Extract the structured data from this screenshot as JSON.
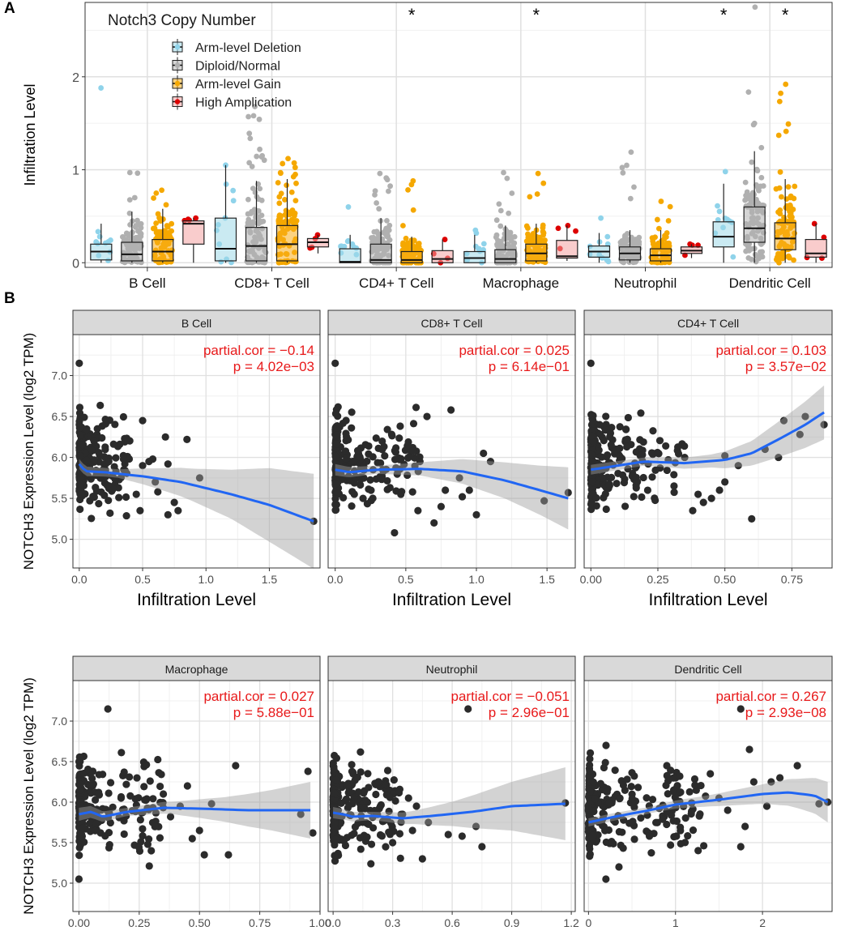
{
  "panel_a": {
    "label": "A",
    "title": "Notch3 Copy Number",
    "ylabel": "Infiltration Level",
    "y_ticks": [
      "0",
      "1",
      "2"
    ],
    "legend": [
      {
        "label": "Arm-level Deletion",
        "color": "#9fd8e8"
      },
      {
        "label": "Diploid/Normal",
        "color": "#b3b3b3"
      },
      {
        "label": "Arm-level Gain",
        "color": "#f7ad19"
      },
      {
        "label": "High Amplication",
        "color": "#f4a3a3"
      }
    ],
    "significance_marker": "*"
  },
  "panel_b": {
    "label": "B",
    "ylabel": "NOTCH3 Expression Level (log2 TPM)",
    "xlabel": "Infiltration Level",
    "y_ticks": [
      "5.0",
      "5.5",
      "6.0",
      "6.5",
      "7.0"
    ]
  },
  "chart_data": [
    {
      "type": "box",
      "title": "Notch3 Copy Number",
      "ylabel": "Infiltration Level",
      "ylim": [
        -0.05,
        2.8
      ],
      "categories": [
        "B Cell",
        "CD8+ T Cell",
        "CD4+ T Cell",
        "Macrophage",
        "Neutrophil",
        "Dendritic Cell"
      ],
      "groups": [
        "Arm-level Deletion",
        "Diploid/Normal",
        "Arm-level Gain",
        "High Amplication"
      ],
      "significant": [
        {
          "category": "CD4+ T Cell",
          "group": "Arm-level Gain"
        },
        {
          "category": "Macrophage",
          "group": "Arm-level Gain"
        },
        {
          "category": "Dendritic Cell",
          "group": "Arm-level Deletion"
        },
        {
          "category": "Dendritic Cell",
          "group": "Arm-level Gain"
        }
      ],
      "boxes": [
        [
          {
            "q1": 0.03,
            "med": 0.12,
            "q3": 0.2,
            "lo": 0.0,
            "hi": 0.42,
            "max": 1.88
          },
          {
            "q1": 0.02,
            "med": 0.09,
            "q3": 0.22,
            "lo": 0.0,
            "hi": 0.55,
            "max": 0.97
          },
          {
            "q1": 0.02,
            "med": 0.12,
            "q3": 0.25,
            "lo": 0.0,
            "hi": 0.58,
            "max": 0.78
          },
          {
            "q1": 0.2,
            "med": 0.42,
            "q3": 0.45,
            "lo": 0.0,
            "hi": 0.48,
            "max": 0.48
          }
        ],
        [
          {
            "q1": 0.02,
            "med": 0.15,
            "q3": 0.48,
            "lo": 0.0,
            "hi": 1.05,
            "max": 1.05
          },
          {
            "q1": 0.02,
            "med": 0.18,
            "q3": 0.38,
            "lo": 0.0,
            "hi": 0.88,
            "max": 1.68
          },
          {
            "q1": 0.02,
            "med": 0.2,
            "q3": 0.4,
            "lo": 0.0,
            "hi": 0.9,
            "max": 1.12
          },
          {
            "q1": 0.17,
            "med": 0.22,
            "q3": 0.26,
            "lo": 0.1,
            "hi": 0.3,
            "max": 0.3
          }
        ],
        [
          {
            "q1": 0.0,
            "med": 0.01,
            "q3": 0.15,
            "lo": 0.0,
            "hi": 0.3,
            "max": 0.6
          },
          {
            "q1": 0.0,
            "med": 0.03,
            "q3": 0.2,
            "lo": 0.0,
            "hi": 0.48,
            "max": 0.96
          },
          {
            "q1": 0.0,
            "med": 0.03,
            "q3": 0.12,
            "lo": 0.0,
            "hi": 0.28,
            "max": 0.88
          },
          {
            "q1": 0.0,
            "med": 0.04,
            "q3": 0.13,
            "lo": 0.0,
            "hi": 0.25,
            "max": 0.25
          }
        ],
        [
          {
            "q1": 0.0,
            "med": 0.05,
            "q3": 0.12,
            "lo": 0.0,
            "hi": 0.3,
            "max": 0.35
          },
          {
            "q1": 0.0,
            "med": 0.04,
            "q3": 0.14,
            "lo": 0.0,
            "hi": 0.4,
            "max": 0.97
          },
          {
            "q1": 0.02,
            "med": 0.1,
            "q3": 0.2,
            "lo": 0.0,
            "hi": 0.42,
            "max": 0.96
          },
          {
            "q1": 0.05,
            "med": 0.07,
            "q3": 0.24,
            "lo": 0.02,
            "hi": 0.4,
            "max": 0.4
          }
        ],
        [
          {
            "q1": 0.06,
            "med": 0.12,
            "q3": 0.18,
            "lo": 0.0,
            "hi": 0.32,
            "max": 0.48
          },
          {
            "q1": 0.03,
            "med": 0.1,
            "q3": 0.17,
            "lo": 0.0,
            "hi": 0.35,
            "max": 1.19
          },
          {
            "q1": 0.02,
            "med": 0.08,
            "q3": 0.15,
            "lo": 0.0,
            "hi": 0.35,
            "max": 0.66
          },
          {
            "q1": 0.1,
            "med": 0.13,
            "q3": 0.17,
            "lo": 0.05,
            "hi": 0.2,
            "max": 0.2
          }
        ],
        [
          {
            "q1": 0.17,
            "med": 0.28,
            "q3": 0.44,
            "lo": 0.0,
            "hi": 0.85,
            "max": 0.98
          },
          {
            "q1": 0.22,
            "med": 0.37,
            "q3": 0.6,
            "lo": 0.0,
            "hi": 1.2,
            "max": 2.75
          },
          {
            "q1": 0.14,
            "med": 0.26,
            "q3": 0.43,
            "lo": 0.0,
            "hi": 0.9,
            "max": 1.92
          },
          {
            "q1": 0.06,
            "med": 0.1,
            "q3": 0.25,
            "lo": 0.0,
            "hi": 0.42,
            "max": 0.42
          }
        ]
      ]
    },
    {
      "type": "scatter",
      "title": "B Cell",
      "xlabel": "Infiltration Level",
      "ylabel": "NOTCH3 Expression Level (log2 TPM)",
      "xlim": [
        -0.05,
        1.9
      ],
      "ylim": [
        4.65,
        7.5
      ],
      "x_ticks": [
        0.0,
        0.5,
        1.0,
        1.5
      ],
      "x_tick_labels": [
        "0.0",
        "0.5",
        "1.0",
        "1.5"
      ],
      "annotation": [
        "partial.cor = −0.14",
        "p = 4.02e−03"
      ],
      "fit": [
        [
          0.0,
          5.92
        ],
        [
          0.05,
          5.83
        ],
        [
          0.2,
          5.82
        ],
        [
          0.5,
          5.77
        ],
        [
          0.8,
          5.7
        ],
        [
          1.2,
          5.55
        ],
        [
          1.5,
          5.42
        ],
        [
          1.85,
          5.22
        ]
      ],
      "band": [
        [
          0.0,
          0.06
        ],
        [
          0.3,
          0.05
        ],
        [
          0.6,
          0.12
        ],
        [
          0.9,
          0.2
        ],
        [
          1.2,
          0.3
        ],
        [
          1.5,
          0.45
        ],
        [
          1.85,
          0.58
        ]
      ],
      "points": [
        [
          0.0,
          7.15
        ],
        [
          1.85,
          5.22
        ],
        [
          0.85,
          6.22
        ],
        [
          0.95,
          5.75
        ],
        [
          0.7,
          5.92
        ],
        [
          0.7,
          5.3
        ],
        [
          0.75,
          5.45
        ],
        [
          0.62,
          5.58
        ],
        [
          0.6,
          5.7
        ],
        [
          0.55,
          5.95
        ],
        [
          0.48,
          5.35
        ],
        [
          0.5,
          5.9
        ],
        [
          0.68,
          6.25
        ],
        [
          0.5,
          6.45
        ],
        [
          0.45,
          5.55
        ],
        [
          0.58,
          5.98
        ],
        [
          0.78,
          5.35
        ]
      ],
      "cloud": {
        "x": [
          0.0,
          0.4
        ],
        "y": [
          5.2,
          6.7
        ],
        "n": 230
      }
    },
    {
      "type": "scatter",
      "title": "CD8+ T Cell",
      "xlabel": "Infiltration Level",
      "ylabel": "NOTCH3 Expression Level (log2 TPM)",
      "xlim": [
        -0.05,
        1.7
      ],
      "ylim": [
        4.65,
        7.5
      ],
      "x_ticks": [
        0.0,
        0.5,
        1.0,
        1.5
      ],
      "x_tick_labels": [
        "0.0",
        "0.5",
        "1.0",
        "1.5"
      ],
      "annotation": [
        "partial.cor = 0.025",
        "p = 6.14e−01"
      ],
      "fit": [
        [
          0.0,
          5.85
        ],
        [
          0.1,
          5.82
        ],
        [
          0.3,
          5.85
        ],
        [
          0.6,
          5.86
        ],
        [
          0.9,
          5.83
        ],
        [
          1.2,
          5.72
        ],
        [
          1.45,
          5.6
        ],
        [
          1.65,
          5.5
        ]
      ],
      "band": [
        [
          0.0,
          0.07
        ],
        [
          0.3,
          0.05
        ],
        [
          0.6,
          0.08
        ],
        [
          0.9,
          0.15
        ],
        [
          1.2,
          0.22
        ],
        [
          1.45,
          0.3
        ],
        [
          1.65,
          0.38
        ]
      ],
      "points": [
        [
          0.0,
          7.15
        ],
        [
          1.65,
          5.57
        ],
        [
          1.48,
          5.47
        ],
        [
          1.05,
          6.05
        ],
        [
          1.1,
          5.95
        ],
        [
          0.88,
          5.75
        ],
        [
          0.9,
          5.52
        ],
        [
          0.75,
          5.4
        ],
        [
          0.78,
          5.6
        ],
        [
          0.6,
          5.95
        ],
        [
          0.55,
          6.08
        ],
        [
          0.95,
          5.6
        ],
        [
          0.82,
          6.58
        ],
        [
          0.65,
          6.5
        ],
        [
          0.7,
          5.2
        ],
        [
          1.0,
          5.3
        ],
        [
          0.42,
          5.08
        ]
      ],
      "cloud": {
        "x": [
          0.0,
          0.6
        ],
        "y": [
          5.2,
          6.7
        ],
        "n": 230
      }
    },
    {
      "type": "scatter",
      "title": "CD4+ T Cell",
      "xlabel": "Infiltration Level",
      "ylabel": "NOTCH3 Expression Level (log2 TPM)",
      "xlim": [
        -0.025,
        0.9
      ],
      "ylim": [
        4.65,
        7.5
      ],
      "x_ticks": [
        0.0,
        0.25,
        0.5,
        0.75
      ],
      "x_tick_labels": [
        "0.00",
        "0.25",
        "0.50",
        "0.75"
      ],
      "annotation": [
        "partial.cor = 0.103",
        "p = 3.57e−02"
      ],
      "fit": [
        [
          0.0,
          5.85
        ],
        [
          0.1,
          5.9
        ],
        [
          0.2,
          5.95
        ],
        [
          0.35,
          5.93
        ],
        [
          0.5,
          5.97
        ],
        [
          0.6,
          6.05
        ],
        [
          0.7,
          6.22
        ],
        [
          0.8,
          6.4
        ],
        [
          0.87,
          6.55
        ]
      ],
      "band": [
        [
          0.0,
          0.06
        ],
        [
          0.2,
          0.05
        ],
        [
          0.45,
          0.08
        ],
        [
          0.6,
          0.15
        ],
        [
          0.75,
          0.25
        ],
        [
          0.87,
          0.33
        ]
      ],
      "points": [
        [
          0.0,
          7.15
        ],
        [
          0.87,
          6.4
        ],
        [
          0.8,
          6.5
        ],
        [
          0.78,
          6.28
        ],
        [
          0.7,
          6.0
        ],
        [
          0.72,
          6.45
        ],
        [
          0.6,
          5.25
        ],
        [
          0.65,
          6.1
        ],
        [
          0.55,
          5.9
        ],
        [
          0.5,
          5.7
        ],
        [
          0.48,
          5.6
        ],
        [
          0.45,
          5.5
        ],
        [
          0.4,
          5.55
        ],
        [
          0.42,
          5.45
        ],
        [
          0.35,
          6.0
        ],
        [
          0.5,
          6.02
        ],
        [
          0.38,
          5.35
        ]
      ],
      "cloud": {
        "x": [
          0.0,
          0.35
        ],
        "y": [
          5.1,
          6.7
        ],
        "n": 230
      }
    },
    {
      "type": "scatter",
      "title": "Macrophage",
      "xlabel": "Infiltration Level",
      "ylabel": "NOTCH3 Expression Level (log2 TPM)",
      "xlim": [
        -0.025,
        1.0
      ],
      "ylim": [
        4.65,
        7.5
      ],
      "x_ticks": [
        0.0,
        0.25,
        0.5,
        0.75,
        1.0
      ],
      "x_tick_labels": [
        "0.00",
        "0.25",
        "0.50",
        "0.75",
        "1.00"
      ],
      "annotation": [
        "partial.cor = 0.027",
        "p = 5.88e−01"
      ],
      "fit": [
        [
          0.0,
          5.85
        ],
        [
          0.05,
          5.88
        ],
        [
          0.1,
          5.82
        ],
        [
          0.2,
          5.88
        ],
        [
          0.35,
          5.93
        ],
        [
          0.5,
          5.92
        ],
        [
          0.7,
          5.9
        ],
        [
          0.96,
          5.9
        ]
      ],
      "band": [
        [
          0.0,
          0.08
        ],
        [
          0.2,
          0.05
        ],
        [
          0.4,
          0.08
        ],
        [
          0.6,
          0.15
        ],
        [
          0.8,
          0.25
        ],
        [
          0.96,
          0.35
        ]
      ],
      "points": [
        [
          0.12,
          7.15
        ],
        [
          0.95,
          6.38
        ],
        [
          0.97,
          5.62
        ],
        [
          0.92,
          5.85
        ],
        [
          0.65,
          6.45
        ],
        [
          0.55,
          5.98
        ],
        [
          0.62,
          5.35
        ],
        [
          0.5,
          5.65
        ],
        [
          0.52,
          5.35
        ],
        [
          0.42,
          5.95
        ],
        [
          0.47,
          5.55
        ],
        [
          0.38,
          5.82
        ],
        [
          0.35,
          6.1
        ],
        [
          0.45,
          6.2
        ],
        [
          0.3,
          5.4
        ],
        [
          0.0,
          5.05
        ]
      ],
      "cloud": {
        "x": [
          0.0,
          0.35
        ],
        "y": [
          5.2,
          6.7
        ],
        "n": 230
      }
    },
    {
      "type": "scatter",
      "title": "Neutrophil",
      "xlabel": "Infiltration Level",
      "ylabel": "NOTCH3 Expression Level (log2 TPM)",
      "xlim": [
        -0.025,
        1.22
      ],
      "ylim": [
        4.65,
        7.5
      ],
      "x_ticks": [
        0.0,
        0.3,
        0.6,
        0.9,
        1.2
      ],
      "x_tick_labels": [
        "0.0",
        "0.3",
        "0.6",
        "0.9",
        "1.2"
      ],
      "annotation": [
        "partial.cor = −0.051",
        "p = 2.96e−01"
      ],
      "fit": [
        [
          0.0,
          5.87
        ],
        [
          0.05,
          5.85
        ],
        [
          0.1,
          5.82
        ],
        [
          0.2,
          5.83
        ],
        [
          0.35,
          5.8
        ],
        [
          0.5,
          5.83
        ],
        [
          0.7,
          5.88
        ],
        [
          0.9,
          5.95
        ],
        [
          1.17,
          5.98
        ]
      ],
      "band": [
        [
          0.0,
          0.07
        ],
        [
          0.2,
          0.05
        ],
        [
          0.4,
          0.08
        ],
        [
          0.6,
          0.15
        ],
        [
          0.9,
          0.3
        ],
        [
          1.17,
          0.45
        ]
      ],
      "points": [
        [
          0.68,
          7.15
        ],
        [
          1.17,
          5.99
        ],
        [
          0.75,
          5.45
        ],
        [
          0.72,
          5.7
        ],
        [
          0.65,
          5.58
        ],
        [
          0.58,
          5.6
        ],
        [
          0.48,
          5.75
        ],
        [
          0.45,
          5.3
        ],
        [
          0.42,
          5.95
        ],
        [
          0.4,
          5.65
        ],
        [
          0.35,
          5.85
        ],
        [
          0.3,
          5.5
        ],
        [
          0.38,
          6.05
        ]
      ],
      "cloud": {
        "x": [
          0.0,
          0.35
        ],
        "y": [
          5.2,
          6.7
        ],
        "n": 230
      }
    },
    {
      "type": "scatter",
      "title": "Dendritic Cell",
      "xlabel": "Infiltration Level",
      "ylabel": "NOTCH3 Expression Level (log2 TPM)",
      "xlim": [
        -0.05,
        2.8
      ],
      "ylim": [
        4.65,
        7.5
      ],
      "x_ticks": [
        0,
        1,
        2
      ],
      "x_tick_labels": [
        "0",
        "1",
        "2"
      ],
      "annotation": [
        "partial.cor = 0.267",
        "p = 2.93e−08"
      ],
      "fit": [
        [
          0.0,
          5.75
        ],
        [
          0.3,
          5.82
        ],
        [
          0.7,
          5.9
        ],
        [
          1.0,
          5.97
        ],
        [
          1.5,
          6.03
        ],
        [
          2.0,
          6.1
        ],
        [
          2.3,
          6.12
        ],
        [
          2.6,
          6.08
        ],
        [
          2.75,
          6.0
        ]
      ],
      "band": [
        [
          0.0,
          0.05
        ],
        [
          0.8,
          0.04
        ],
        [
          1.4,
          0.07
        ],
        [
          2.0,
          0.12
        ],
        [
          2.4,
          0.18
        ],
        [
          2.75,
          0.25
        ]
      ],
      "points": [
        [
          1.75,
          7.15
        ],
        [
          1.85,
          6.65
        ],
        [
          2.75,
          6.0
        ],
        [
          2.65,
          5.98
        ],
        [
          2.4,
          6.45
        ],
        [
          2.2,
          6.3
        ],
        [
          2.1,
          6.25
        ],
        [
          2.05,
          5.95
        ],
        [
          1.9,
          6.25
        ],
        [
          1.8,
          5.7
        ],
        [
          1.75,
          5.45
        ],
        [
          1.6,
          5.9
        ],
        [
          1.5,
          6.05
        ],
        [
          1.4,
          6.35
        ],
        [
          0.2,
          5.05
        ],
        [
          0.35,
          5.2
        ]
      ],
      "cloud": {
        "x": [
          0.0,
          1.35
        ],
        "y": [
          5.15,
          6.7
        ],
        "n": 260
      }
    }
  ]
}
